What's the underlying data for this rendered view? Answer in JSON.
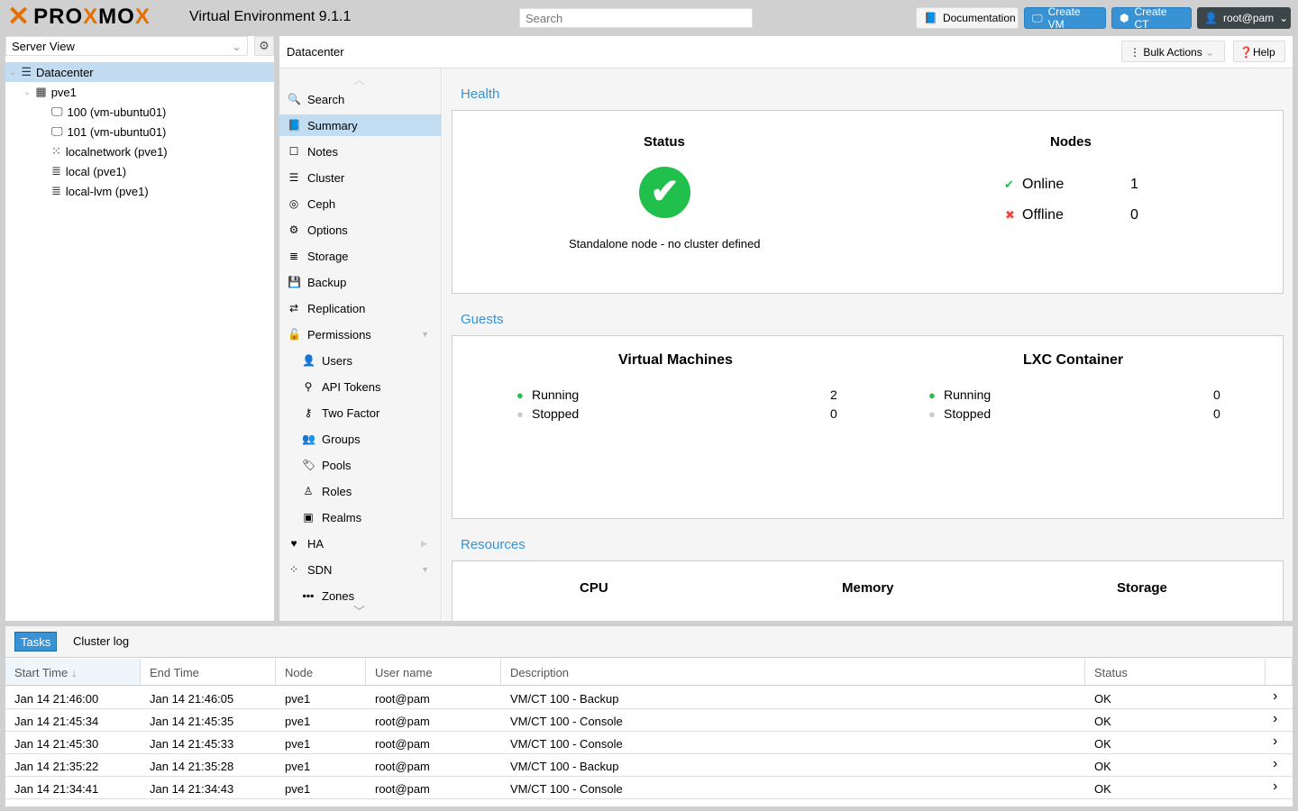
{
  "topbar": {
    "logo_text": "PROXMOX",
    "version": "Virtual Environment 9.1.1",
    "search_placeholder": "Search",
    "documentation": "Documentation",
    "create_vm": "Create VM",
    "create_ct": "Create CT",
    "user": "root@pam"
  },
  "left": {
    "view": "Server View",
    "tree": [
      {
        "label": "Datacenter",
        "icon": "datacenter-icon",
        "level": 0
      },
      {
        "label": "pve1",
        "icon": "node-icon",
        "level": 1
      },
      {
        "label": "100 (vm-ubuntu01)",
        "icon": "vm-running-icon",
        "level": 2
      },
      {
        "label": "101 (vm-ubuntu01)",
        "icon": "vm-running-icon",
        "level": 2
      },
      {
        "label": "localnetwork (pve1)",
        "icon": "network-icon",
        "level": 2
      },
      {
        "label": "local (pve1)",
        "icon": "storage-icon",
        "level": 2
      },
      {
        "label": "local-lvm (pve1)",
        "icon": "storage-icon",
        "level": 2
      }
    ]
  },
  "header": {
    "title": "Datacenter",
    "bulk_actions": "Bulk Actions",
    "help": "Help"
  },
  "nav": [
    {
      "label": "Search",
      "icon": "search-icon",
      "glyph": "🔍"
    },
    {
      "label": "Summary",
      "icon": "book-icon",
      "glyph": "📘"
    },
    {
      "label": "Notes",
      "icon": "notes-icon",
      "glyph": "☐"
    },
    {
      "label": "Cluster",
      "icon": "cluster-icon",
      "glyph": "☰"
    },
    {
      "label": "Ceph",
      "icon": "ceph-icon",
      "glyph": "◎"
    },
    {
      "label": "Options",
      "icon": "gear-icon",
      "glyph": "⚙"
    },
    {
      "label": "Storage",
      "icon": "database-icon",
      "glyph": "≣"
    },
    {
      "label": "Backup",
      "icon": "floppy-icon",
      "glyph": "💾"
    },
    {
      "label": "Replication",
      "icon": "retweet-icon",
      "glyph": "⇄"
    },
    {
      "label": "Permissions",
      "icon": "unlock-icon",
      "glyph": "🔓"
    },
    {
      "label": "Users",
      "icon": "user-icon",
      "glyph": "👤"
    },
    {
      "label": "API Tokens",
      "icon": "token-icon",
      "glyph": "⚲"
    },
    {
      "label": "Two Factor",
      "icon": "key-icon",
      "glyph": "⚷"
    },
    {
      "label": "Groups",
      "icon": "users-icon",
      "glyph": "👥"
    },
    {
      "label": "Pools",
      "icon": "tags-icon",
      "glyph": "🏷"
    },
    {
      "label": "Roles",
      "icon": "male-icon",
      "glyph": "♙"
    },
    {
      "label": "Realms",
      "icon": "address-book-icon",
      "glyph": "▣"
    },
    {
      "label": "HA",
      "icon": "heartbeat-icon",
      "glyph": "♥"
    },
    {
      "label": "SDN",
      "icon": "sdn-icon",
      "glyph": "⁘"
    },
    {
      "label": "Zones",
      "icon": "zones-icon",
      "glyph": "▪▪▪"
    }
  ],
  "health": {
    "title": "Health",
    "status_title": "Status",
    "status_text": "Standalone node - no cluster defined",
    "nodes_title": "Nodes",
    "online_label": "Online",
    "online": "1",
    "offline_label": "Offline",
    "offline": "0"
  },
  "guests": {
    "title": "Guests",
    "vm_title": "Virtual Machines",
    "lxc_title": "LXC Container",
    "running_label": "Running",
    "stopped_label": "Stopped",
    "vm_running": "2",
    "vm_stopped": "0",
    "lxc_running": "0",
    "lxc_stopped": "0"
  },
  "resources": {
    "title": "Resources",
    "cpu": "CPU",
    "memory": "Memory",
    "storage": "Storage"
  },
  "tasks": {
    "tabs": [
      "Tasks",
      "Cluster log"
    ],
    "columns": [
      "Start Time",
      "End Time",
      "Node",
      "User name",
      "Description",
      "Status"
    ],
    "rows": [
      [
        "Jan 14 21:46:00",
        "Jan 14 21:46:05",
        "pve1",
        "root@pam",
        "VM/CT 100 - Backup",
        "OK"
      ],
      [
        "Jan 14 21:45:34",
        "Jan 14 21:45:35",
        "pve1",
        "root@pam",
        "VM/CT 100 - Console",
        "OK"
      ],
      [
        "Jan 14 21:45:30",
        "Jan 14 21:45:33",
        "pve1",
        "root@pam",
        "VM/CT 100 - Console",
        "OK"
      ],
      [
        "Jan 14 21:35:22",
        "Jan 14 21:35:28",
        "pve1",
        "root@pam",
        "VM/CT 100 - Backup",
        "OK"
      ],
      [
        "Jan 14 21:34:41",
        "Jan 14 21:34:43",
        "pve1",
        "root@pam",
        "VM/CT 100 - Console",
        "OK"
      ]
    ]
  },
  "colors": {
    "accent": "#3892d4",
    "orange": "#e57000",
    "selected": "#c2ddf2",
    "ok_green": "#21bf4b",
    "error_red": "#f44336"
  }
}
